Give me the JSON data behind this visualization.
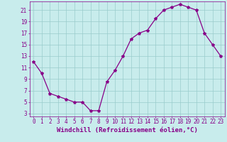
{
  "x": [
    0,
    1,
    2,
    3,
    4,
    5,
    6,
    7,
    8,
    9,
    10,
    11,
    12,
    13,
    14,
    15,
    16,
    17,
    18,
    19,
    20,
    21,
    22,
    23
  ],
  "y": [
    12,
    10,
    6.5,
    6,
    5.5,
    5,
    5,
    3.5,
    3.5,
    8.5,
    10.5,
    13,
    16,
    17,
    17.5,
    19.5,
    21,
    21.5,
    22,
    21.5,
    21,
    17,
    15,
    13
  ],
  "line_color": "#880088",
  "marker": "*",
  "marker_size": 3,
  "bg_color": "#c8ecec",
  "grid_color": "#99cccc",
  "xlabel": "Windchill (Refroidissement éolien,°C)",
  "xlabel_color": "#880088",
  "xlim": [
    -0.5,
    23.5
  ],
  "ylim": [
    2.5,
    22.5
  ],
  "yticks": [
    3,
    5,
    7,
    9,
    11,
    13,
    15,
    17,
    19,
    21
  ],
  "xticks": [
    0,
    1,
    2,
    3,
    4,
    5,
    6,
    7,
    8,
    9,
    10,
    11,
    12,
    13,
    14,
    15,
    16,
    17,
    18,
    19,
    20,
    21,
    22,
    23
  ],
  "tick_color": "#880088",
  "tick_fontsize": 5.5,
  "xlabel_fontsize": 6.5,
  "linewidth": 0.9
}
